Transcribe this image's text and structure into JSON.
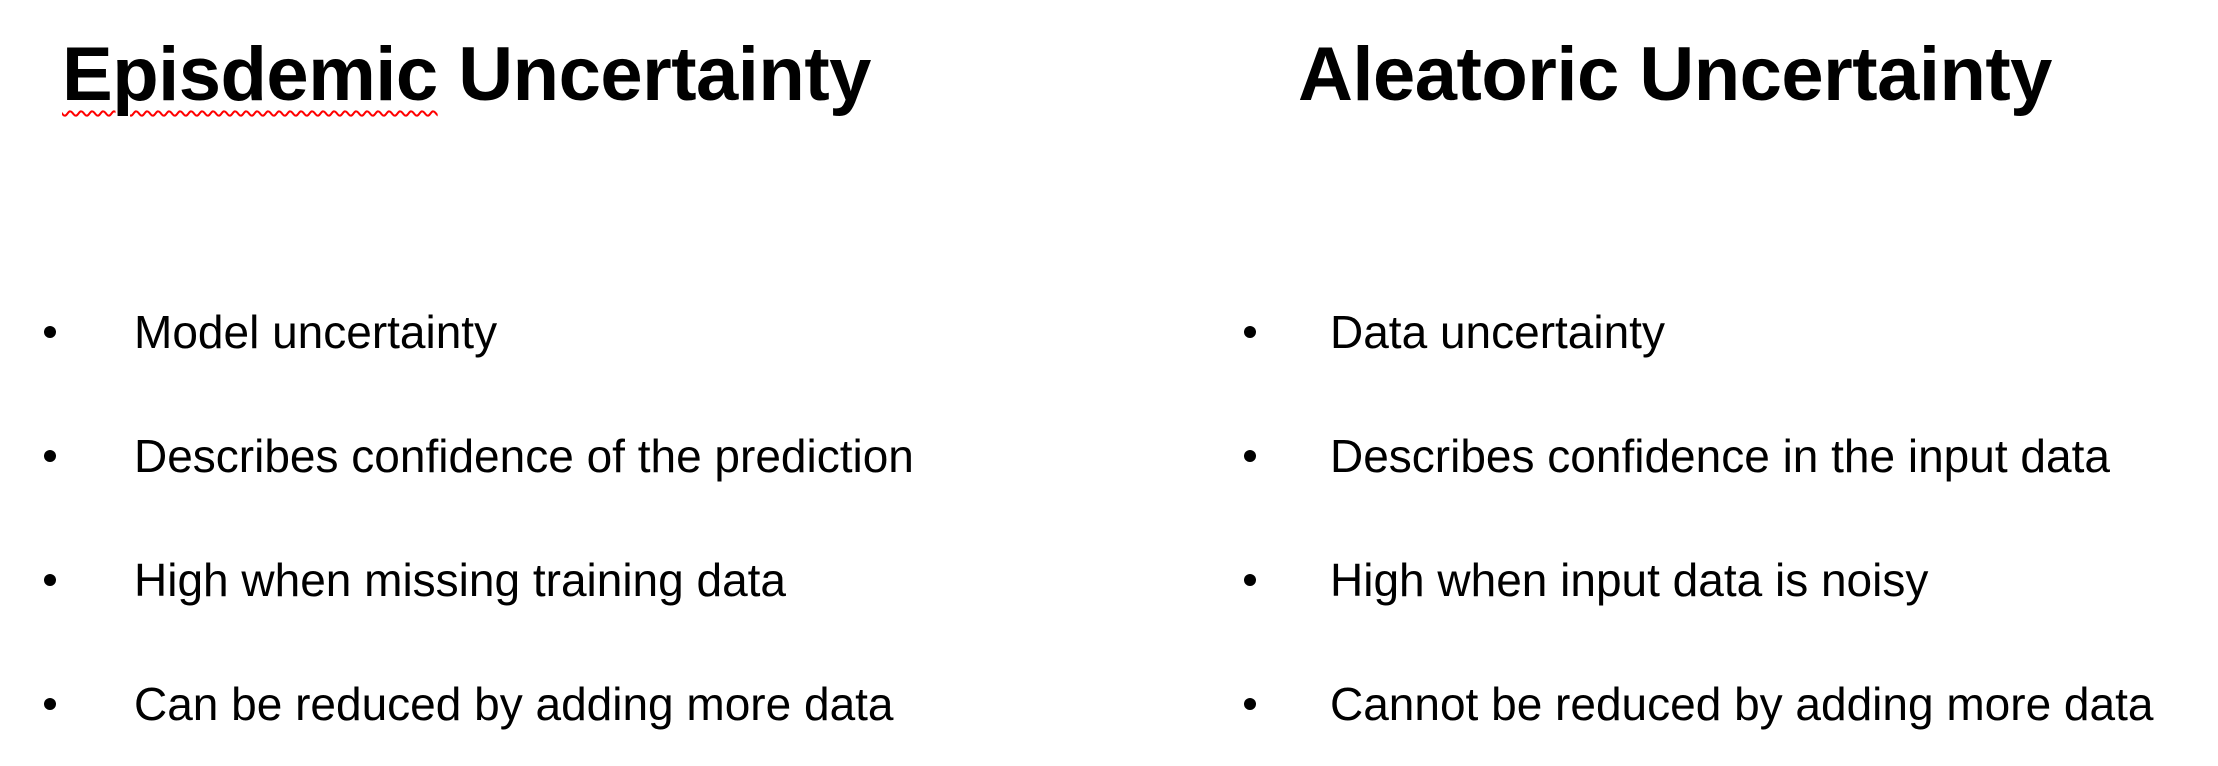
{
  "left": {
    "heading_word1": "Episdemic",
    "heading_word2": "Uncertainty",
    "items": [
      "Model uncertainty",
      "Describes confidence of the prediction",
      "High when missing training data",
      "Can be reduced by adding more data"
    ]
  },
  "right": {
    "heading": "Aleatoric Uncertainty",
    "items": [
      "Data uncertainty",
      "Describes confidence in the input data",
      "High when input data is noisy",
      "Cannot be reduced by adding more data"
    ]
  }
}
